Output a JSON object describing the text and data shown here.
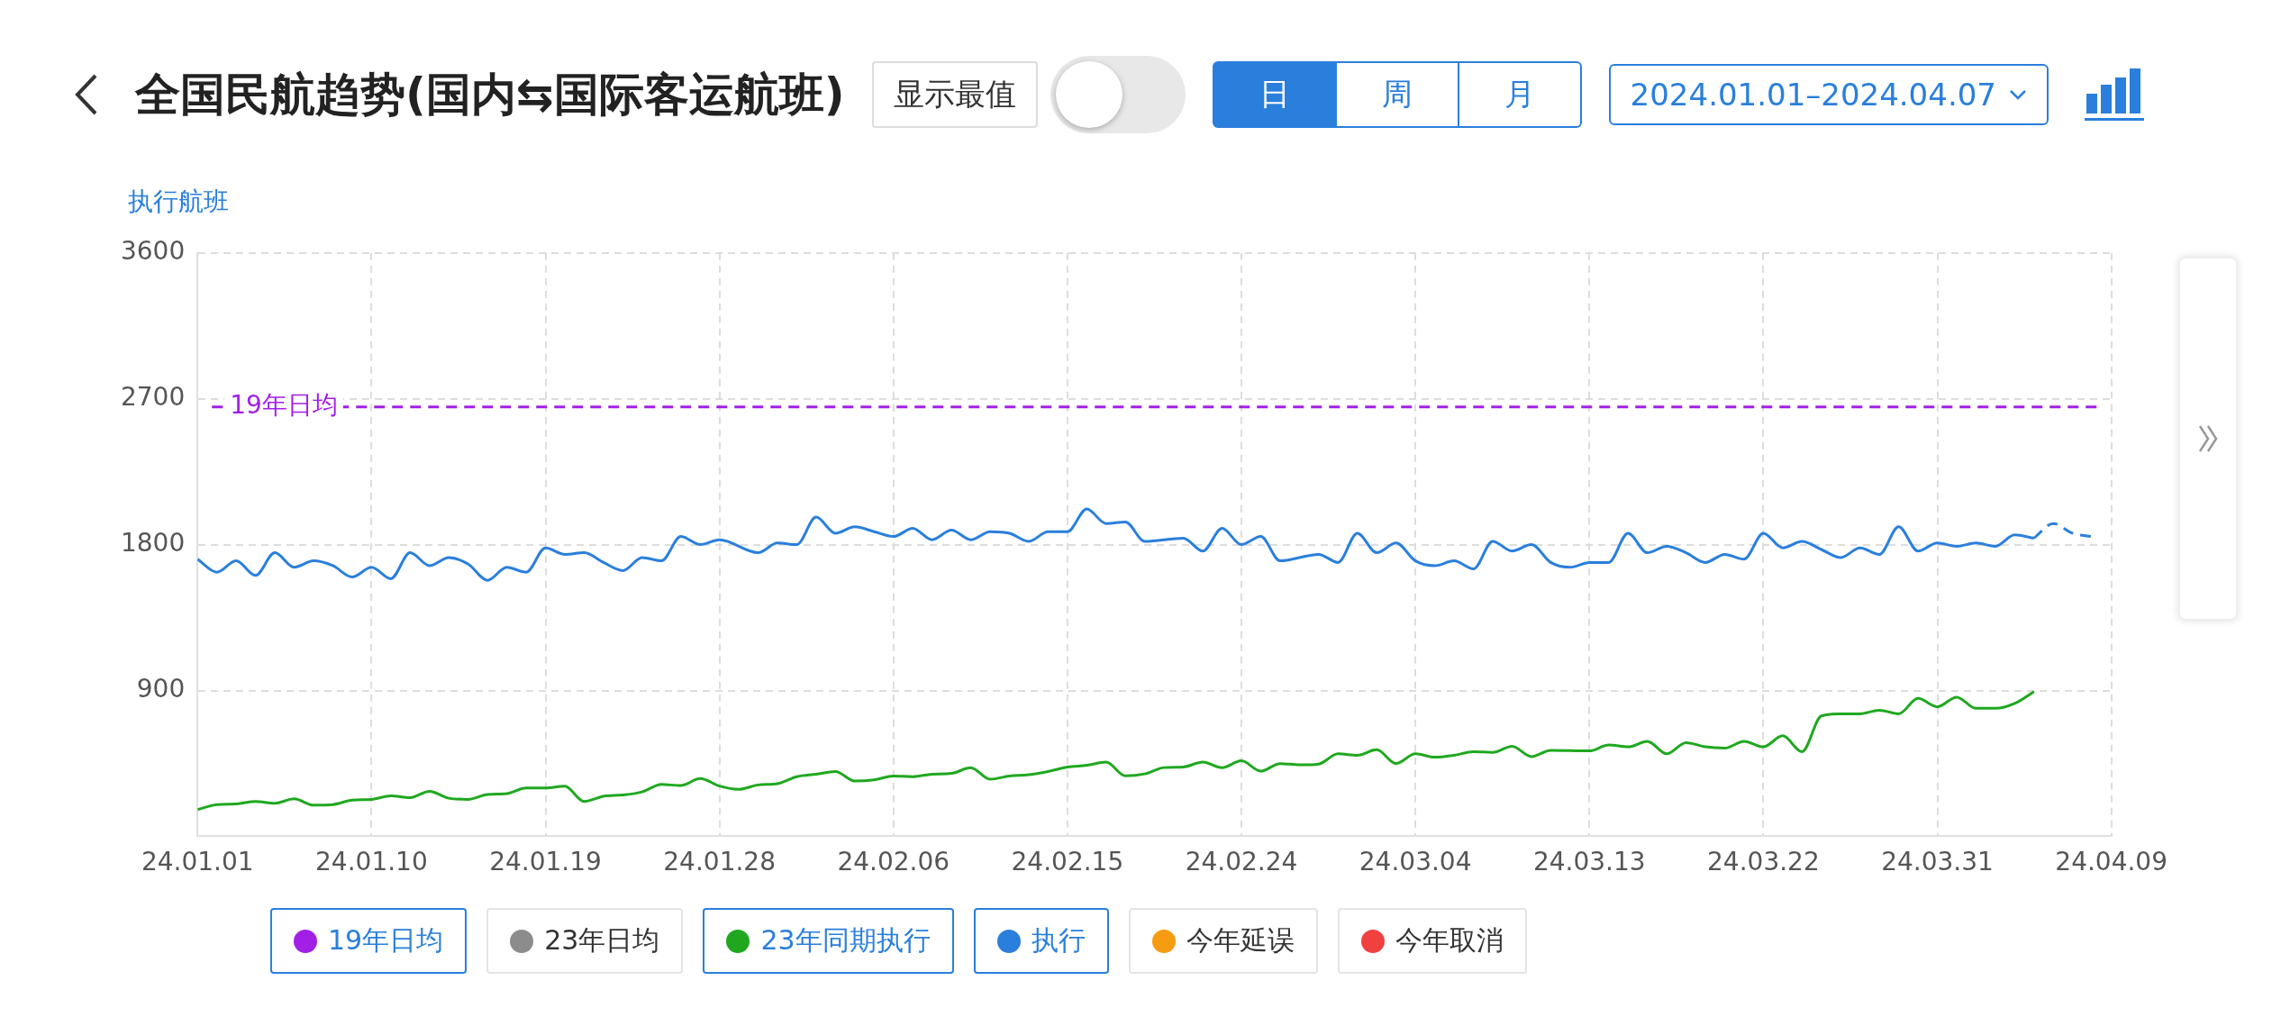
{
  "chart_data": {
    "type": "line",
    "title": "全国民航趋势(国内⇆国际客运航班)",
    "ylabel": "执行航班",
    "annotations": [
      "显示最值",
      "日",
      "周",
      "月",
      "2024.01.01–2024.04.07"
    ],
    "xlim": [
      "2024-01-01",
      "2024-04-09"
    ],
    "xticks": [
      {
        "value": "2024-01-01",
        "label": "24.01.01"
      },
      {
        "value": "2024-01-10",
        "label": "24.01.10"
      },
      {
        "value": "2024-01-19",
        "label": "24.01.19"
      },
      {
        "value": "2024-01-28",
        "label": "24.01.28"
      },
      {
        "value": "2024-02-06",
        "label": "24.02.06"
      },
      {
        "value": "2024-02-15",
        "label": "24.02.15"
      },
      {
        "value": "2024-02-24",
        "label": "24.02.24"
      },
      {
        "value": "2024-03-04",
        "label": "24.03.04"
      },
      {
        "value": "2024-03-13",
        "label": "24.03.13"
      },
      {
        "value": "2024-03-22",
        "label": "24.03.22"
      },
      {
        "value": "2024-03-31",
        "label": "24.03.31"
      },
      {
        "value": "2024-04-09",
        "label": "24.04.09"
      }
    ],
    "ylim": [
      0,
      3600
    ],
    "yticks": [
      900,
      1800,
      2700,
      3600
    ],
    "grid": true,
    "legend": "bottom",
    "marker": "none",
    "ref_lines": [
      {
        "axis": "y",
        "value": 2650,
        "label": "19年日均",
        "color": "#a21fe6",
        "line_style": "dashed"
      }
    ],
    "series": [
      {
        "name": "23年日均",
        "color": "#8c8c8c"
      },
      {
        "name": "23年同期执行",
        "color": "#1fa81f",
        "x": [
          "2024-01-01",
          "2024-01-02",
          "2024-01-03",
          "2024-01-04",
          "2024-01-05",
          "2024-01-06",
          "2024-01-07",
          "2024-01-08",
          "2024-01-09",
          "2024-01-10",
          "2024-01-11",
          "2024-01-12",
          "2024-01-13",
          "2024-01-14",
          "2024-01-15",
          "2024-01-16",
          "2024-01-17",
          "2024-01-18",
          "2024-01-19",
          "2024-01-20",
          "2024-01-21",
          "2024-01-22",
          "2024-01-23",
          "2024-01-24",
          "2024-01-25",
          "2024-01-26",
          "2024-01-27",
          "2024-01-28",
          "2024-01-29",
          "2024-01-30",
          "2024-01-31",
          "2024-02-01",
          "2024-02-02",
          "2024-02-03",
          "2024-02-04",
          "2024-02-05",
          "2024-02-06",
          "2024-02-07",
          "2024-02-08",
          "2024-02-09",
          "2024-02-10",
          "2024-02-11",
          "2024-02-12",
          "2024-02-13",
          "2024-02-14",
          "2024-02-15",
          "2024-02-16",
          "2024-02-17",
          "2024-02-18",
          "2024-02-19",
          "2024-02-20",
          "2024-02-21",
          "2024-02-22",
          "2024-02-23",
          "2024-02-24",
          "2024-02-25",
          "2024-02-26",
          "2024-02-27",
          "2024-02-28",
          "2024-02-29",
          "2024-03-01",
          "2024-03-02",
          "2024-03-03",
          "2024-03-04",
          "2024-03-05",
          "2024-03-06",
          "2024-03-07",
          "2024-03-08",
          "2024-03-09",
          "2024-03-10",
          "2024-03-11",
          "2024-03-13",
          "2024-03-14",
          "2024-03-15",
          "2024-03-16",
          "2024-03-17",
          "2024-03-18",
          "2024-03-19",
          "2024-03-20",
          "2024-03-21",
          "2024-03-22",
          "2024-03-23",
          "2024-03-24",
          "2024-03-25",
          "2024-03-26",
          "2024-03-27",
          "2024-03-28",
          "2024-03-29",
          "2024-03-30",
          "2024-03-31",
          "2024-04-01",
          "2024-04-02",
          "2024-04-03",
          "2024-04-04",
          "2024-04-05"
        ],
        "values": [
          165,
          196,
          200,
          215,
          204,
          231,
          192,
          196,
          223,
          228,
          250,
          239,
          278,
          235,
          228,
          258,
          263,
          298,
          298,
          310,
          215,
          247,
          255,
          274,
          321,
          313,
          356,
          310,
          290,
          317,
          325,
          368,
          383,
          400,
          341,
          348,
          372,
          368,
          383,
          388,
          423,
          352,
          372,
          380,
          400,
          427,
          438,
          458,
          373,
          385,
          424,
          428,
          458,
          424,
          466,
          402,
          449,
          441,
          446,
          509,
          500,
          535,
          449,
          509,
          488,
          500,
          522,
          518,
          556,
          492,
          531,
          527,
          564,
          552,
          586,
          509,
          578,
          552,
          544,
          586,
          552,
          620,
          522,
          743,
          756,
          756,
          778,
          756,
          851,
          799,
          859,
          790,
          790,
          820,
          893
        ]
      },
      {
        "name": "执行",
        "color": "#2a7fdc",
        "x": [
          "2024-01-01",
          "2024-01-02",
          "2024-01-03",
          "2024-01-04",
          "2024-01-05",
          "2024-01-06",
          "2024-01-07",
          "2024-01-08",
          "2024-01-09",
          "2024-01-10",
          "2024-01-11",
          "2024-01-12",
          "2024-01-13",
          "2024-01-14",
          "2024-01-15",
          "2024-01-16",
          "2024-01-17",
          "2024-01-18",
          "2024-01-19",
          "2024-01-20",
          "2024-01-21",
          "2024-01-22",
          "2024-01-23",
          "2024-01-24",
          "2024-01-25",
          "2024-01-26",
          "2024-01-27",
          "2024-01-28",
          "2024-01-30",
          "2024-01-31",
          "2024-02-01",
          "2024-02-02",
          "2024-02-03",
          "2024-02-04",
          "2024-02-05",
          "2024-02-06",
          "2024-02-07",
          "2024-02-08",
          "2024-02-09",
          "2024-02-10",
          "2024-02-11",
          "2024-02-12",
          "2024-02-13",
          "2024-02-14",
          "2024-02-15",
          "2024-02-16",
          "2024-02-17",
          "2024-02-18",
          "2024-02-19",
          "2024-02-21",
          "2024-02-22",
          "2024-02-23",
          "2024-02-24",
          "2024-02-25",
          "2024-02-26",
          "2024-02-28",
          "2024-02-29",
          "2024-03-01",
          "2024-03-02",
          "2024-03-03",
          "2024-03-04",
          "2024-03-05",
          "2024-03-06",
          "2024-03-07",
          "2024-03-08",
          "2024-03-09",
          "2024-03-10",
          "2024-03-11",
          "2024-03-12",
          "2024-03-13",
          "2024-03-14",
          "2024-03-15",
          "2024-03-16",
          "2024-03-17",
          "2024-03-18",
          "2024-03-19",
          "2024-03-20",
          "2024-03-21",
          "2024-03-22",
          "2024-03-23",
          "2024-03-24",
          "2024-03-25",
          "2024-03-26",
          "2024-03-27",
          "2024-03-28",
          "2024-03-29",
          "2024-03-30",
          "2024-03-31",
          "2024-04-01",
          "2024-04-02",
          "2024-04-03",
          "2024-04-04",
          "2024-04-05"
        ],
        "values": [
          1710,
          1630,
          1700,
          1610,
          1750,
          1660,
          1700,
          1670,
          1600,
          1660,
          1590,
          1750,
          1670,
          1720,
          1680,
          1580,
          1660,
          1630,
          1780,
          1740,
          1750,
          1690,
          1640,
          1720,
          1700,
          1850,
          1800,
          1830,
          1750,
          1810,
          1800,
          1970,
          1870,
          1910,
          1880,
          1850,
          1900,
          1830,
          1890,
          1830,
          1880,
          1870,
          1820,
          1880,
          1880,
          2020,
          1930,
          1940,
          1820,
          1840,
          1760,
          1900,
          1800,
          1850,
          1700,
          1740,
          1690,
          1870,
          1750,
          1810,
          1700,
          1670,
          1700,
          1650,
          1820,
          1760,
          1800,
          1690,
          1660,
          1690,
          1690,
          1870,
          1750,
          1790,
          1750,
          1690,
          1740,
          1710,
          1870,
          1780,
          1820,
          1770,
          1720,
          1780,
          1740,
          1910,
          1760,
          1810,
          1790,
          1810,
          1790,
          1860,
          1840
        ]
      },
      {
        "color": "#2a7fdc",
        "line_style": "dashed",
        "x": [
          "2024-04-05",
          "2024-04-06",
          "2024-04-07",
          "2024-04-08"
        ],
        "values": [
          1840,
          1930,
          1870,
          1850
        ]
      },
      {
        "name": "今年延误",
        "color": "#f59c12"
      },
      {
        "name": "今年取消",
        "color": "#f04040"
      }
    ]
  }
}
